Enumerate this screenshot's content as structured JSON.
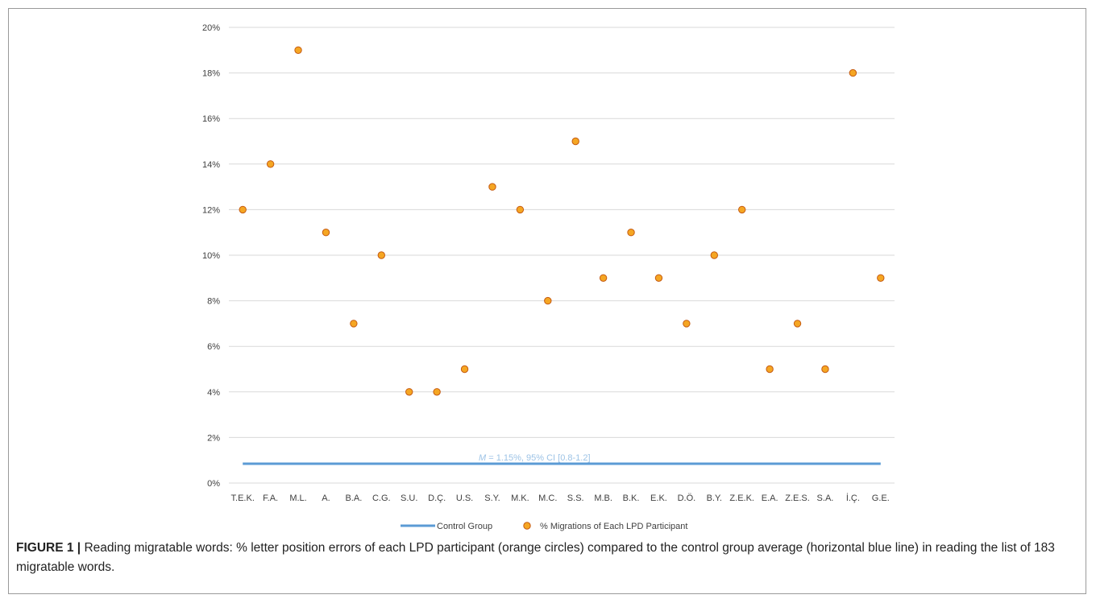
{
  "chart_data": {
    "type": "scatter",
    "categories": [
      "T.E.K.",
      "F.A.",
      "M.L.",
      "A.",
      "B.A.",
      "C.G.",
      "S.U.",
      "D.Ç.",
      "U.S.",
      "S.Y.",
      "M.K.",
      "M.C.",
      "S.S.",
      "M.B.",
      "B.K.",
      "E.K.",
      "D.Ö.",
      "B.Y.",
      "Z.E.K.",
      "E.A.",
      "Z.E.S.",
      "S.A.",
      "İ.Ç.",
      "G.E."
    ],
    "series": [
      {
        "name": "% Migrations of Each LPD Participant",
        "kind": "scatter",
        "color": "#f5a623",
        "values": [
          12,
          14,
          19,
          11,
          7,
          10,
          4,
          4,
          5,
          13,
          12,
          8,
          15,
          9,
          11,
          9,
          7,
          10,
          12,
          5,
          7,
          5,
          18,
          9
        ]
      },
      {
        "name": "Control Group",
        "kind": "line",
        "color": "#5b9bd5",
        "value": 0.85
      }
    ],
    "ylim": [
      0,
      20
    ],
    "yticks": [
      "0%",
      "2%",
      "4%",
      "6%",
      "8%",
      "10%",
      "12%",
      "14%",
      "16%",
      "18%",
      "20%"
    ],
    "grid": true,
    "legend_position": "bottom",
    "annotation": {
      "m_symbol": "M",
      "text": " = 1.15%,  95% CI [0.8-1.2]"
    }
  },
  "caption": {
    "label": "FIGURE 1 |",
    "text": " Reading migratable words: % letter position errors of each LPD participant (orange circles) compared to the control group average (horizontal blue line) in reading the list of 183 migratable words."
  }
}
